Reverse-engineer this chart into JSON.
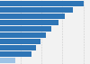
{
  "values": [
    100,
    87,
    78,
    70,
    62,
    55,
    49,
    43,
    38,
    18
  ],
  "bar_color": "#2e75b6",
  "last_bar_color": "#9dc3e6",
  "background_color": "#f2f2f2",
  "plot_background": "#ffffff",
  "xlim": [
    0,
    108
  ],
  "n_bars": 10,
  "bar_height": 0.82,
  "figsize": [
    1.0,
    0.71
  ],
  "dpi": 100
}
